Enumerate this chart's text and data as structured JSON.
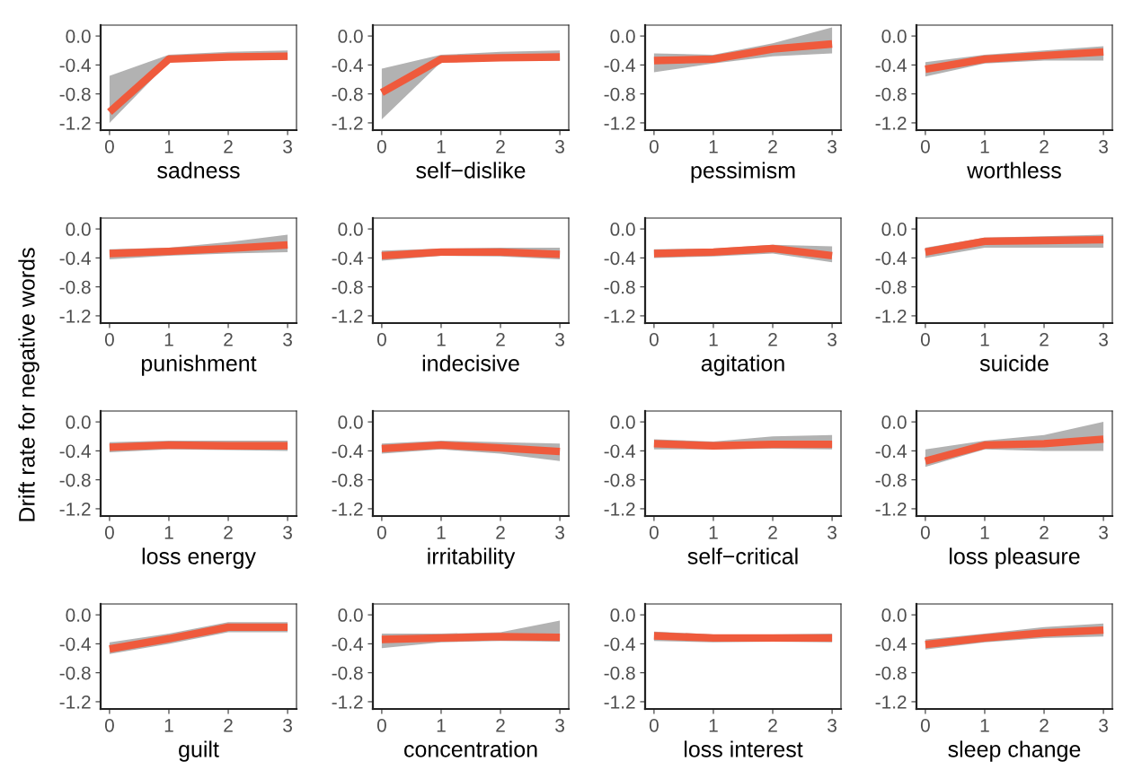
{
  "chart_data": [
    {
      "type": "line",
      "xlabel": "sadness",
      "ylabel": "Drift rate for negative words",
      "x": [
        0,
        1,
        2,
        3
      ],
      "xlim": [
        -0.15,
        3.15
      ],
      "ylim": [
        -1.3,
        0.15
      ],
      "xticks": [
        0,
        1,
        2,
        3
      ],
      "yticks": [
        {
          "value": 0,
          "label": "0.0"
        },
        {
          "value": -0.4,
          "label": "-0.4"
        },
        {
          "value": -0.8,
          "label": "-0.8"
        },
        {
          "value": -1.2,
          "label": "-1.2"
        }
      ],
      "grid": false,
      "series": [
        {
          "color": "#ef5a3c",
          "values": [
            -1.05,
            -0.32,
            -0.29,
            -0.28
          ],
          "lower": [
            -1.2,
            -0.36,
            -0.33,
            -0.33
          ],
          "upper": [
            -0.55,
            -0.26,
            -0.22,
            -0.2
          ]
        }
      ]
    },
    {
      "type": "line",
      "xlabel": "self−dislike",
      "x": [
        0,
        1,
        2,
        3
      ],
      "xlim": [
        -0.15,
        3.15
      ],
      "ylim": [
        -1.3,
        0.15
      ],
      "xticks": [
        0,
        1,
        2,
        3
      ],
      "yticks": [
        {
          "value": 0,
          "label": "0.0"
        },
        {
          "value": -0.4,
          "label": "-0.4"
        },
        {
          "value": -0.8,
          "label": "-0.8"
        },
        {
          "value": -1.2,
          "label": "-1.2"
        }
      ],
      "grid": false,
      "series": [
        {
          "color": "#ef5a3c",
          "values": [
            -0.78,
            -0.32,
            -0.3,
            -0.29
          ],
          "lower": [
            -1.15,
            -0.36,
            -0.34,
            -0.34
          ],
          "upper": [
            -0.45,
            -0.26,
            -0.22,
            -0.2
          ]
        }
      ]
    },
    {
      "type": "line",
      "xlabel": "pessimism",
      "x": [
        0,
        1,
        2,
        3
      ],
      "xlim": [
        -0.15,
        3.15
      ],
      "ylim": [
        -1.3,
        0.15
      ],
      "xticks": [
        0,
        1,
        2,
        3
      ],
      "yticks": [
        {
          "value": 0,
          "label": "0.0"
        },
        {
          "value": -0.4,
          "label": "-0.4"
        },
        {
          "value": -0.8,
          "label": "-0.8"
        },
        {
          "value": -1.2,
          "label": "-1.2"
        }
      ],
      "grid": false,
      "series": [
        {
          "color": "#ef5a3c",
          "values": [
            -0.34,
            -0.32,
            -0.18,
            -0.11
          ],
          "lower": [
            -0.5,
            -0.38,
            -0.28,
            -0.24
          ],
          "upper": [
            -0.24,
            -0.26,
            -0.1,
            0.12
          ]
        }
      ]
    },
    {
      "type": "line",
      "xlabel": "worthless",
      "x": [
        0,
        1,
        2,
        3
      ],
      "xlim": [
        -0.15,
        3.15
      ],
      "ylim": [
        -1.3,
        0.15
      ],
      "xticks": [
        0,
        1,
        2,
        3
      ],
      "yticks": [
        {
          "value": 0,
          "label": "0.0"
        },
        {
          "value": -0.4,
          "label": "-0.4"
        },
        {
          "value": -0.8,
          "label": "-0.8"
        },
        {
          "value": -1.2,
          "label": "-1.2"
        }
      ],
      "grid": false,
      "series": [
        {
          "color": "#ef5a3c",
          "values": [
            -0.46,
            -0.32,
            -0.27,
            -0.22
          ],
          "lower": [
            -0.56,
            -0.38,
            -0.34,
            -0.34
          ],
          "upper": [
            -0.36,
            -0.26,
            -0.2,
            -0.14
          ]
        }
      ]
    },
    {
      "type": "line",
      "xlabel": "punishment",
      "x": [
        0,
        1,
        2,
        3
      ],
      "xlim": [
        -0.15,
        3.15
      ],
      "ylim": [
        -1.3,
        0.15
      ],
      "xticks": [
        0,
        1,
        2,
        3
      ],
      "yticks": [
        {
          "value": 0,
          "label": "0.0"
        },
        {
          "value": -0.4,
          "label": "-0.4"
        },
        {
          "value": -0.8,
          "label": "-0.8"
        },
        {
          "value": -1.2,
          "label": "-1.2"
        }
      ],
      "grid": false,
      "series": [
        {
          "color": "#ef5a3c",
          "values": [
            -0.34,
            -0.31,
            -0.27,
            -0.22
          ],
          "lower": [
            -0.42,
            -0.37,
            -0.34,
            -0.32
          ],
          "upper": [
            -0.28,
            -0.26,
            -0.18,
            -0.08
          ]
        }
      ]
    },
    {
      "type": "line",
      "xlabel": "indecisive",
      "x": [
        0,
        1,
        2,
        3
      ],
      "xlim": [
        -0.15,
        3.15
      ],
      "ylim": [
        -1.3,
        0.15
      ],
      "xticks": [
        0,
        1,
        2,
        3
      ],
      "yticks": [
        {
          "value": 0,
          "label": "0.0"
        },
        {
          "value": -0.4,
          "label": "-0.4"
        },
        {
          "value": -0.8,
          "label": "-0.8"
        },
        {
          "value": -1.2,
          "label": "-1.2"
        }
      ],
      "grid": false,
      "series": [
        {
          "color": "#ef5a3c",
          "values": [
            -0.37,
            -0.32,
            -0.32,
            -0.35
          ],
          "lower": [
            -0.44,
            -0.37,
            -0.38,
            -0.42
          ],
          "upper": [
            -0.3,
            -0.27,
            -0.26,
            -0.26
          ]
        }
      ]
    },
    {
      "type": "line",
      "xlabel": "agitation",
      "x": [
        0,
        1,
        2,
        3
      ],
      "xlim": [
        -0.15,
        3.15
      ],
      "ylim": [
        -1.3,
        0.15
      ],
      "xticks": [
        0,
        1,
        2,
        3
      ],
      "yticks": [
        {
          "value": 0,
          "label": "0.0"
        },
        {
          "value": -0.4,
          "label": "-0.4"
        },
        {
          "value": -0.8,
          "label": "-0.8"
        },
        {
          "value": -1.2,
          "label": "-1.2"
        }
      ],
      "grid": false,
      "series": [
        {
          "color": "#ef5a3c",
          "values": [
            -0.34,
            -0.32,
            -0.27,
            -0.37
          ],
          "lower": [
            -0.4,
            -0.38,
            -0.34,
            -0.46
          ],
          "upper": [
            -0.28,
            -0.27,
            -0.22,
            -0.24
          ]
        }
      ]
    },
    {
      "type": "line",
      "xlabel": "suicide",
      "x": [
        0,
        1,
        2,
        3
      ],
      "xlim": [
        -0.15,
        3.15
      ],
      "ylim": [
        -1.3,
        0.15
      ],
      "xticks": [
        0,
        1,
        2,
        3
      ],
      "yticks": [
        {
          "value": 0,
          "label": "0.0"
        },
        {
          "value": -0.4,
          "label": "-0.4"
        },
        {
          "value": -0.8,
          "label": "-0.8"
        },
        {
          "value": -1.2,
          "label": "-1.2"
        }
      ],
      "grid": false,
      "series": [
        {
          "color": "#ef5a3c",
          "values": [
            -0.32,
            -0.17,
            -0.16,
            -0.15
          ],
          "lower": [
            -0.4,
            -0.26,
            -0.26,
            -0.26
          ],
          "upper": [
            -0.26,
            -0.12,
            -0.1,
            -0.08
          ]
        }
      ]
    },
    {
      "type": "line",
      "xlabel": "loss energy",
      "x": [
        0,
        1,
        2,
        3
      ],
      "xlim": [
        -0.15,
        3.15
      ],
      "ylim": [
        -1.3,
        0.15
      ],
      "xticks": [
        0,
        1,
        2,
        3
      ],
      "yticks": [
        {
          "value": 0,
          "label": "0.0"
        },
        {
          "value": -0.4,
          "label": "-0.4"
        },
        {
          "value": -0.8,
          "label": "-0.8"
        },
        {
          "value": -1.2,
          "label": "-1.2"
        }
      ],
      "grid": false,
      "series": [
        {
          "color": "#ef5a3c",
          "values": [
            -0.35,
            -0.32,
            -0.33,
            -0.33
          ],
          "lower": [
            -0.42,
            -0.38,
            -0.39,
            -0.4
          ],
          "upper": [
            -0.28,
            -0.26,
            -0.26,
            -0.26
          ]
        }
      ]
    },
    {
      "type": "line",
      "xlabel": "irritability",
      "x": [
        0,
        1,
        2,
        3
      ],
      "xlim": [
        -0.15,
        3.15
      ],
      "ylim": [
        -1.3,
        0.15
      ],
      "xticks": [
        0,
        1,
        2,
        3
      ],
      "yticks": [
        {
          "value": 0,
          "label": "0.0"
        },
        {
          "value": -0.4,
          "label": "-0.4"
        },
        {
          "value": -0.8,
          "label": "-0.8"
        },
        {
          "value": -1.2,
          "label": "-1.2"
        }
      ],
      "grid": false,
      "series": [
        {
          "color": "#ef5a3c",
          "values": [
            -0.37,
            -0.32,
            -0.36,
            -0.41
          ],
          "lower": [
            -0.44,
            -0.38,
            -0.44,
            -0.54
          ],
          "upper": [
            -0.3,
            -0.26,
            -0.28,
            -0.3
          ]
        }
      ]
    },
    {
      "type": "line",
      "xlabel": "self−critical",
      "x": [
        0,
        1,
        2,
        3
      ],
      "xlim": [
        -0.15,
        3.15
      ],
      "ylim": [
        -1.3,
        0.15
      ],
      "xticks": [
        0,
        1,
        2,
        3
      ],
      "yticks": [
        {
          "value": 0,
          "label": "0.0"
        },
        {
          "value": -0.4,
          "label": "-0.4"
        },
        {
          "value": -0.8,
          "label": "-0.8"
        },
        {
          "value": -1.2,
          "label": "-1.2"
        }
      ],
      "grid": false,
      "series": [
        {
          "color": "#ef5a3c",
          "values": [
            -0.3,
            -0.33,
            -0.31,
            -0.31
          ],
          "lower": [
            -0.38,
            -0.38,
            -0.37,
            -0.38
          ],
          "upper": [
            -0.24,
            -0.27,
            -0.2,
            -0.18
          ]
        }
      ]
    },
    {
      "type": "line",
      "xlabel": "loss pleasure",
      "x": [
        0,
        1,
        2,
        3
      ],
      "xlim": [
        -0.15,
        3.15
      ],
      "ylim": [
        -1.3,
        0.15
      ],
      "xticks": [
        0,
        1,
        2,
        3
      ],
      "yticks": [
        {
          "value": 0,
          "label": "0.0"
        },
        {
          "value": -0.4,
          "label": "-0.4"
        },
        {
          "value": -0.8,
          "label": "-0.8"
        },
        {
          "value": -1.2,
          "label": "-1.2"
        }
      ],
      "grid": false,
      "series": [
        {
          "color": "#ef5a3c",
          "values": [
            -0.54,
            -0.32,
            -0.3,
            -0.24
          ],
          "lower": [
            -0.62,
            -0.38,
            -0.4,
            -0.4
          ],
          "upper": [
            -0.38,
            -0.26,
            -0.18,
            0.0
          ]
        }
      ]
    },
    {
      "type": "line",
      "xlabel": "guilt",
      "x": [
        0,
        1,
        2,
        3
      ],
      "xlim": [
        -0.15,
        3.15
      ],
      "ylim": [
        -1.3,
        0.15
      ],
      "xticks": [
        0,
        1,
        2,
        3
      ],
      "yticks": [
        {
          "value": 0,
          "label": "0.0"
        },
        {
          "value": -0.4,
          "label": "-0.4"
        },
        {
          "value": -0.8,
          "label": "-0.8"
        },
        {
          "value": -1.2,
          "label": "-1.2"
        }
      ],
      "grid": false,
      "series": [
        {
          "color": "#ef5a3c",
          "values": [
            -0.47,
            -0.33,
            -0.17,
            -0.17
          ],
          "lower": [
            -0.54,
            -0.4,
            -0.24,
            -0.24
          ],
          "upper": [
            -0.38,
            -0.26,
            -0.1,
            -0.1
          ]
        }
      ]
    },
    {
      "type": "line",
      "xlabel": "concentration",
      "x": [
        0,
        1,
        2,
        3
      ],
      "xlim": [
        -0.15,
        3.15
      ],
      "ylim": [
        -1.3,
        0.15
      ],
      "xticks": [
        0,
        1,
        2,
        3
      ],
      "yticks": [
        {
          "value": 0,
          "label": "0.0"
        },
        {
          "value": -0.4,
          "label": "-0.4"
        },
        {
          "value": -0.8,
          "label": "-0.8"
        },
        {
          "value": -1.2,
          "label": "-1.2"
        }
      ],
      "grid": false,
      "series": [
        {
          "color": "#ef5a3c",
          "values": [
            -0.34,
            -0.32,
            -0.3,
            -0.31
          ],
          "lower": [
            -0.46,
            -0.38,
            -0.36,
            -0.37
          ],
          "upper": [
            -0.26,
            -0.26,
            -0.24,
            -0.08
          ]
        }
      ]
    },
    {
      "type": "line",
      "xlabel": "loss interest",
      "x": [
        0,
        1,
        2,
        3
      ],
      "xlim": [
        -0.15,
        3.15
      ],
      "ylim": [
        -1.3,
        0.15
      ],
      "xticks": [
        0,
        1,
        2,
        3
      ],
      "yticks": [
        {
          "value": 0,
          "label": "0.0"
        },
        {
          "value": -0.4,
          "label": "-0.4"
        },
        {
          "value": -0.8,
          "label": "-0.8"
        },
        {
          "value": -1.2,
          "label": "-1.2"
        }
      ],
      "grid": false,
      "series": [
        {
          "color": "#ef5a3c",
          "values": [
            -0.29,
            -0.32,
            -0.32,
            -0.32
          ],
          "lower": [
            -0.36,
            -0.38,
            -0.37,
            -0.38
          ],
          "upper": [
            -0.23,
            -0.27,
            -0.27,
            -0.26
          ]
        }
      ]
    },
    {
      "type": "line",
      "xlabel": "sleep change",
      "x": [
        0,
        1,
        2,
        3
      ],
      "xlim": [
        -0.15,
        3.15
      ],
      "ylim": [
        -1.3,
        0.15
      ],
      "xticks": [
        0,
        1,
        2,
        3
      ],
      "yticks": [
        {
          "value": 0,
          "label": "0.0"
        },
        {
          "value": -0.4,
          "label": "-0.4"
        },
        {
          "value": -0.8,
          "label": "-0.8"
        },
        {
          "value": -1.2,
          "label": "-1.2"
        }
      ],
      "grid": false,
      "series": [
        {
          "color": "#ef5a3c",
          "values": [
            -0.41,
            -0.32,
            -0.25,
            -0.21
          ],
          "lower": [
            -0.48,
            -0.38,
            -0.32,
            -0.3
          ],
          "upper": [
            -0.34,
            -0.26,
            -0.17,
            -0.12
          ]
        }
      ]
    }
  ]
}
